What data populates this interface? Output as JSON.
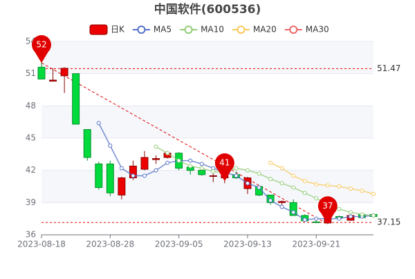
{
  "chart_data": {
    "type": "candlestick",
    "title": "中国软件(600536)",
    "categories": [
      "2023-08-18",
      null,
      null,
      null,
      null,
      null,
      "2023-08-28",
      null,
      null,
      null,
      null,
      null,
      "2023-09-05",
      null,
      null,
      null,
      null,
      null,
      "2023-09-13",
      null,
      null,
      null,
      null,
      null,
      "2023-09-21",
      null,
      null,
      null,
      null,
      null
    ],
    "candles": {
      "name": "日K",
      "up_color": "#ec0000",
      "down_color": "#00da3c",
      "open": [
        51.6,
        50.3,
        50.8,
        51.0,
        45.8,
        42.6,
        42.6,
        39.7,
        41.3,
        42.1,
        43.0,
        43.2,
        43.6,
        42.3,
        42.0,
        41.45,
        41.3,
        41.6,
        40.3,
        40.5,
        39.7,
        39.0,
        39.0,
        37.8,
        37.2,
        37.1,
        37.7,
        37.35,
        37.9,
        37.9
      ],
      "close": [
        50.5,
        50.4,
        51.5,
        46.3,
        43.2,
        40.4,
        39.9,
        41.3,
        42.4,
        43.2,
        43.1,
        43.6,
        42.2,
        42.0,
        41.6,
        41.5,
        41.5,
        41.3,
        41.3,
        39.7,
        39.0,
        39.1,
        37.8,
        37.3,
        37.15,
        37.8,
        37.6,
        37.8,
        37.6,
        37.7
      ],
      "low": [
        50.5,
        50.3,
        49.2,
        46.3,
        42.9,
        40.2,
        39.6,
        39.3,
        41.1,
        42.0,
        42.6,
        43.1,
        42.0,
        41.6,
        41.5,
        40.9,
        40.8,
        41.2,
        39.8,
        39.6,
        38.8,
        38.4,
        37.8,
        37.2,
        37.15,
        37.0,
        37.5,
        37.3,
        37.5,
        37.6
      ],
      "high": [
        52.1,
        51.5,
        51.6,
        51.0,
        45.8,
        42.8,
        42.9,
        41.4,
        42.9,
        43.8,
        43.4,
        43.8,
        43.7,
        42.4,
        42.1,
        41.7,
        41.7,
        41.9,
        41.4,
        40.6,
        39.7,
        39.2,
        39.3,
        37.9,
        37.3,
        38.0,
        37.8,
        37.9,
        38.0,
        38.0
      ]
    },
    "series": [
      {
        "name": "MA5",
        "color": "#5470c6",
        "values": [
          null,
          null,
          null,
          null,
          null,
          46.4,
          44.3,
          42.2,
          41.5,
          41.5,
          42.0,
          42.7,
          42.9,
          42.9,
          42.6,
          42.2,
          41.8,
          41.5,
          40.8,
          40.4,
          39.2,
          38.6,
          38.1,
          37.4,
          37.5,
          37.5,
          37.5,
          37.7,
          37.7,
          37.8
        ]
      },
      {
        "name": "MA10",
        "color": "#91cc75",
        "values": [
          null,
          null,
          null,
          null,
          null,
          null,
          null,
          null,
          null,
          null,
          44.2,
          43.6,
          42.9,
          42.4,
          42.2,
          41.9,
          41.8,
          42.2,
          42.0,
          41.7,
          41.2,
          40.8,
          40.4,
          39.9,
          39.4,
          38.8,
          38.4,
          38.1,
          37.9,
          37.8
        ]
      },
      {
        "name": "MA20",
        "color": "#fac858",
        "values": [
          null,
          null,
          null,
          null,
          null,
          null,
          null,
          null,
          null,
          null,
          null,
          null,
          null,
          null,
          null,
          null,
          null,
          null,
          null,
          null,
          42.7,
          42.2,
          41.5,
          41.0,
          40.7,
          40.6,
          40.5,
          40.3,
          40.1,
          39.8
        ]
      },
      {
        "name": "MA30",
        "color": "#ee6666",
        "values": [
          null,
          null,
          null,
          null,
          null,
          null,
          null,
          null,
          null,
          null,
          null,
          null,
          null,
          null,
          null,
          null,
          null,
          null,
          null,
          null,
          null,
          null,
          null,
          null,
          null,
          null,
          null,
          null,
          null,
          null
        ]
      }
    ],
    "mark_points": [
      {
        "index": 0,
        "value": 52
      },
      {
        "index": 16,
        "value": 41
      },
      {
        "index": 25,
        "value": 37
      }
    ],
    "mark_lines": [
      51.47,
      37.15
    ],
    "mark_color": "#e00000",
    "ylim": [
      36,
      54
    ],
    "yticks": [
      36,
      39,
      42,
      45,
      48,
      51,
      54
    ],
    "grid": true
  }
}
